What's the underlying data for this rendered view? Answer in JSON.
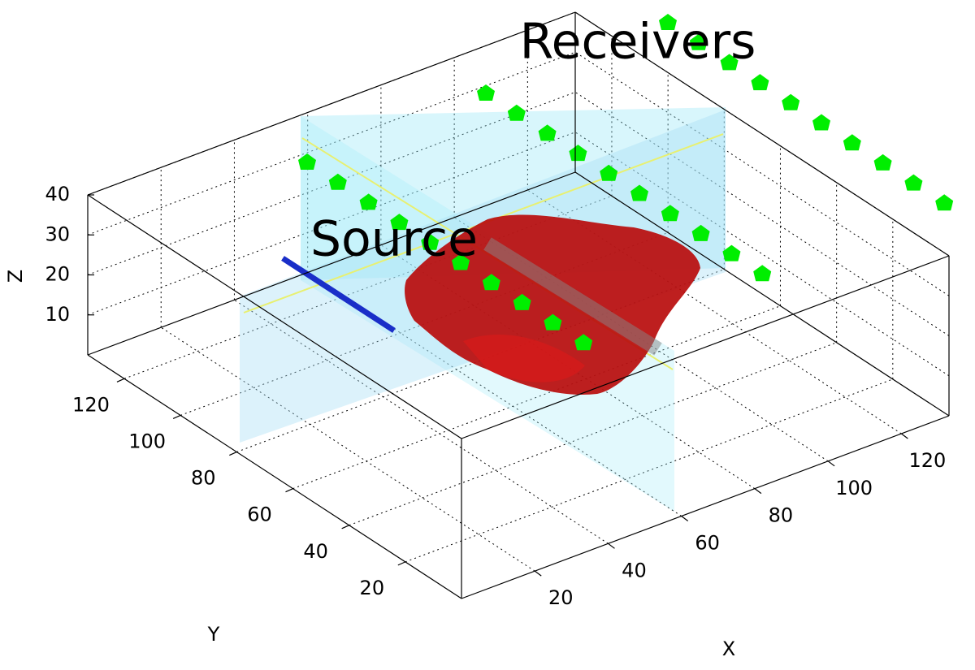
{
  "chart_data": {
    "type": "scatter3d",
    "annotations": [
      "Receivers",
      "Source"
    ],
    "xlabel": "X",
    "ylabel": "Y",
    "zlabel": "Z",
    "xlim": [
      0,
      133
    ],
    "ylim": [
      0,
      133
    ],
    "zlim": [
      0,
      40
    ],
    "xticks": [
      20,
      40,
      60,
      80,
      100,
      120
    ],
    "yticks": [
      20,
      40,
      60,
      80,
      100,
      120
    ],
    "zticks": [
      10,
      20,
      30,
      40
    ],
    "grid": true
  }
}
